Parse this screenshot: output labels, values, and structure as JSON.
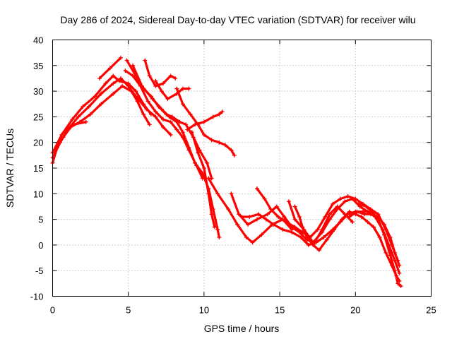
{
  "chart_data": {
    "type": "scatter",
    "title": "Day 286 of 2024, Sidereal Day-to-day VTEC variation (SDTVAR) for receiver wilu",
    "xlabel": "GPS time / hours",
    "ylabel": "SDTVAR / TECUs",
    "xlim": [
      0,
      25
    ],
    "ylim": [
      -10,
      40
    ],
    "xticks": [
      0,
      5,
      10,
      15,
      20,
      25
    ],
    "yticks": [
      -10,
      -5,
      0,
      5,
      10,
      15,
      20,
      25,
      30,
      35,
      40
    ],
    "grid": true,
    "marker": "+",
    "color": "#ff0000",
    "series": [
      {
        "name": "track-1",
        "points": [
          [
            0.0,
            16
          ],
          [
            0.3,
            19
          ],
          [
            0.7,
            21
          ],
          [
            1.2,
            23
          ],
          [
            1.8,
            24
          ],
          [
            2.5,
            25.5
          ],
          [
            3.2,
            27.5
          ],
          [
            4.0,
            29.5
          ],
          [
            4.6,
            31
          ],
          [
            5.2,
            30
          ],
          [
            5.6,
            28
          ],
          [
            6.0,
            25.5
          ],
          [
            6.4,
            23.5
          ]
        ]
      },
      {
        "name": "track-2",
        "points": [
          [
            0.0,
            17
          ],
          [
            0.5,
            20
          ],
          [
            1.0,
            22.5
          ],
          [
            1.7,
            25
          ],
          [
            2.4,
            27
          ],
          [
            3.2,
            29.5
          ],
          [
            4.0,
            31.5
          ],
          [
            4.5,
            32.5
          ],
          [
            5.0,
            31
          ],
          [
            5.5,
            29
          ],
          [
            6.2,
            26.5
          ],
          [
            6.8,
            25
          ],
          [
            7.3,
            23
          ],
          [
            7.8,
            21.5
          ]
        ]
      },
      {
        "name": "track-3",
        "points": [
          [
            0.0,
            18
          ],
          [
            0.6,
            21.5
          ],
          [
            1.3,
            24.5
          ],
          [
            2.0,
            27
          ],
          [
            2.8,
            29
          ],
          [
            3.5,
            31.5
          ],
          [
            4.0,
            33
          ],
          [
            4.4,
            32
          ],
          [
            5.0,
            31.5
          ],
          [
            5.5,
            30
          ],
          [
            6.0,
            27.5
          ],
          [
            6.5,
            25.5
          ]
        ]
      },
      {
        "name": "track-4",
        "points": [
          [
            0.8,
            22
          ],
          [
            1.4,
            23.5
          ],
          [
            2.2,
            24
          ]
        ]
      },
      {
        "name": "track-5",
        "points": [
          [
            3.1,
            32.5
          ],
          [
            3.8,
            34.5
          ],
          [
            4.5,
            36.5
          ]
        ]
      },
      {
        "name": "track-6",
        "points": [
          [
            4.8,
            34
          ],
          [
            5.3,
            33
          ],
          [
            5.8,
            31
          ],
          [
            6.3,
            28
          ],
          [
            6.8,
            26
          ],
          [
            7.3,
            24.5
          ],
          [
            7.8,
            24
          ],
          [
            8.2,
            22.5
          ],
          [
            8.6,
            21
          ],
          [
            9.0,
            18.5
          ],
          [
            9.5,
            15.5
          ],
          [
            9.9,
            13
          ]
        ]
      },
      {
        "name": "track-7",
        "points": [
          [
            4.9,
            36
          ],
          [
            5.5,
            33
          ],
          [
            6.0,
            30.5
          ],
          [
            6.5,
            29
          ],
          [
            7.0,
            27
          ],
          [
            7.5,
            25.5
          ],
          [
            7.9,
            25
          ],
          [
            8.4,
            24
          ],
          [
            8.8,
            23.5
          ],
          [
            9.3,
            21
          ],
          [
            9.7,
            18.5
          ],
          [
            10.2,
            16
          ],
          [
            10.5,
            13
          ]
        ]
      },
      {
        "name": "track-8",
        "points": [
          [
            5.3,
            35
          ],
          [
            5.9,
            31
          ],
          [
            6.6,
            28.5
          ],
          [
            7.2,
            26.5
          ],
          [
            7.7,
            25
          ],
          [
            8.2,
            24
          ],
          [
            8.6,
            22
          ],
          [
            9.0,
            19
          ],
          [
            9.4,
            16
          ],
          [
            9.9,
            14
          ],
          [
            10.3,
            11
          ],
          [
            10.6,
            7
          ],
          [
            10.9,
            3
          ],
          [
            11.0,
            1.5
          ]
        ]
      },
      {
        "name": "track-9",
        "points": [
          [
            6.1,
            36
          ],
          [
            6.4,
            33
          ],
          [
            6.8,
            31
          ],
          [
            7.3,
            31.5
          ],
          [
            7.8,
            33
          ],
          [
            8.1,
            32.5
          ]
        ]
      },
      {
        "name": "track-10",
        "points": [
          [
            6.8,
            32
          ],
          [
            7.2,
            30
          ],
          [
            7.6,
            28.5
          ],
          [
            8.2,
            29.5
          ],
          [
            8.6,
            30.5
          ],
          [
            9.0,
            30.5
          ]
        ]
      },
      {
        "name": "track-11",
        "points": [
          [
            8.2,
            30.5
          ],
          [
            8.6,
            27.5
          ],
          [
            9.1,
            25.5
          ],
          [
            9.6,
            23.5
          ],
          [
            10.0,
            21.5
          ],
          [
            10.5,
            20.5
          ],
          [
            11.0,
            20
          ],
          [
            11.4,
            19.5
          ],
          [
            11.8,
            18.5
          ],
          [
            12.0,
            17.5
          ]
        ]
      },
      {
        "name": "track-12",
        "points": [
          [
            8.9,
            22.5
          ],
          [
            9.4,
            23.5
          ],
          [
            10.0,
            24
          ],
          [
            10.6,
            25
          ],
          [
            11.0,
            25.5
          ],
          [
            11.2,
            26
          ]
        ]
      },
      {
        "name": "track-13",
        "points": [
          [
            9.2,
            22
          ],
          [
            9.6,
            18
          ],
          [
            10.0,
            15
          ],
          [
            10.3,
            10
          ],
          [
            10.5,
            6
          ],
          [
            10.7,
            3.5
          ]
        ]
      },
      {
        "name": "track-14",
        "points": [
          [
            10.3,
            13
          ],
          [
            10.9,
            10
          ],
          [
            11.6,
            7
          ],
          [
            12.2,
            4
          ],
          [
            12.8,
            1.5
          ],
          [
            13.2,
            0.5
          ],
          [
            13.8,
            2
          ],
          [
            14.5,
            4
          ],
          [
            15.2,
            5
          ],
          [
            15.8,
            3
          ]
        ]
      },
      {
        "name": "track-15",
        "points": [
          [
            11.8,
            10
          ],
          [
            12.3,
            6
          ],
          [
            12.9,
            4
          ],
          [
            13.5,
            5
          ],
          [
            14.2,
            6
          ],
          [
            14.8,
            7.5
          ],
          [
            15.3,
            5.5
          ],
          [
            15.8,
            3.5
          ],
          [
            16.3,
            2.5
          ],
          [
            16.8,
            1
          ],
          [
            17.3,
            0.5
          ],
          [
            17.8,
            3
          ],
          [
            18.3,
            6
          ],
          [
            18.8,
            7.5
          ],
          [
            19.3,
            6
          ],
          [
            19.8,
            4.5
          ]
        ]
      },
      {
        "name": "track-16",
        "points": [
          [
            12.5,
            5.5
          ],
          [
            13.0,
            5.5
          ],
          [
            13.6,
            6
          ],
          [
            14.1,
            5
          ],
          [
            14.6,
            4
          ],
          [
            15.2,
            3
          ],
          [
            15.8,
            2.5
          ],
          [
            16.4,
            1.5
          ],
          [
            16.9,
            0
          ],
          [
            17.4,
            0.5
          ],
          [
            17.9,
            1.5
          ],
          [
            18.5,
            3
          ],
          [
            19.0,
            4.5
          ],
          [
            19.5,
            6
          ],
          [
            20.0,
            6.5
          ],
          [
            20.5,
            6.5
          ],
          [
            21.0,
            6.5
          ],
          [
            21.4,
            5.5
          ]
        ]
      },
      {
        "name": "track-17",
        "points": [
          [
            13.5,
            11
          ],
          [
            14.0,
            9
          ],
          [
            14.4,
            7
          ],
          [
            14.9,
            5.5
          ],
          [
            15.4,
            4.5
          ],
          [
            16.0,
            3.5
          ],
          [
            16.5,
            2.5
          ],
          [
            17.0,
            1.5
          ],
          [
            17.5,
            3
          ],
          [
            18.0,
            5.5
          ],
          [
            18.5,
            8
          ],
          [
            19.0,
            9
          ],
          [
            19.5,
            9.5
          ],
          [
            20.0,
            9
          ],
          [
            20.5,
            8
          ],
          [
            21.0,
            7
          ],
          [
            21.5,
            6
          ],
          [
            22.0,
            3
          ],
          [
            22.4,
            0
          ],
          [
            22.8,
            -3
          ]
        ]
      },
      {
        "name": "track-18",
        "points": [
          [
            16.0,
            7.5
          ],
          [
            16.3,
            5.5
          ],
          [
            16.5,
            3.5
          ],
          [
            16.8,
            1.5
          ],
          [
            17.2,
            0
          ],
          [
            17.6,
            -1
          ],
          [
            18.1,
            1
          ],
          [
            18.6,
            3
          ],
          [
            19.1,
            5
          ],
          [
            19.6,
            6.5
          ],
          [
            20.0,
            6
          ],
          [
            20.4,
            5.5
          ],
          [
            20.8,
            4.5
          ],
          [
            21.2,
            3.5
          ],
          [
            21.6,
            1.5
          ],
          [
            22.0,
            -1.5
          ],
          [
            22.4,
            -4
          ],
          [
            22.7,
            -6
          ],
          [
            22.9,
            -7
          ]
        ]
      },
      {
        "name": "track-19",
        "points": [
          [
            15.6,
            8.5
          ],
          [
            16.0,
            5
          ],
          [
            16.6,
            3
          ],
          [
            17.2,
            0.5
          ],
          [
            17.8,
            2.5
          ],
          [
            18.3,
            5
          ],
          [
            18.8,
            7
          ],
          [
            19.3,
            8.5
          ],
          [
            19.8,
            9
          ],
          [
            20.3,
            7.5
          ],
          [
            20.8,
            6.5
          ],
          [
            21.3,
            5.5
          ],
          [
            21.8,
            3
          ],
          [
            22.2,
            0
          ],
          [
            22.6,
            -3
          ],
          [
            22.9,
            -5.5
          ]
        ]
      },
      {
        "name": "track-20",
        "points": [
          [
            20.2,
            8
          ],
          [
            20.7,
            7.5
          ],
          [
            21.1,
            6.5
          ],
          [
            21.5,
            5
          ],
          [
            21.9,
            2
          ],
          [
            22.3,
            -2
          ],
          [
            22.6,
            -5
          ],
          [
            22.8,
            -7.5
          ],
          [
            23.0,
            -8
          ]
        ]
      },
      {
        "name": "track-21",
        "points": [
          [
            19.6,
            5.5
          ],
          [
            20.1,
            6.5
          ],
          [
            20.6,
            6
          ],
          [
            21.0,
            6
          ],
          [
            21.5,
            5.5
          ],
          [
            21.9,
            4
          ],
          [
            22.3,
            1.5
          ],
          [
            22.6,
            -1.5
          ],
          [
            22.9,
            -4
          ]
        ]
      }
    ]
  }
}
